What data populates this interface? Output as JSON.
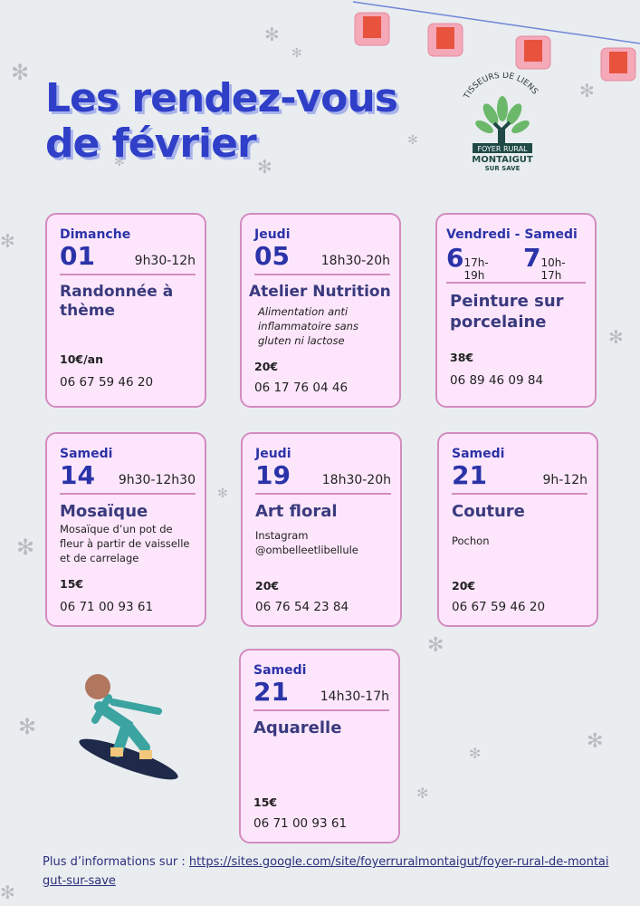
{
  "title": {
    "line1": "Les rendez-vous",
    "line2": "de février"
  },
  "logo": {
    "top_text": "TISSEURS DE LIENS",
    "band": "FOYER RURAL",
    "name": "MONTAIGUT",
    "sub": "SUR SAVE"
  },
  "colors": {
    "title": "#2f3fc8",
    "card_bg": "#fde6fb",
    "card_border": "#d48bc0",
    "accent": "#2b33a8"
  },
  "events": [
    {
      "day": "Dimanche",
      "date": "01",
      "time": "9h30-12h",
      "title": "Randonnée à thème",
      "desc": "",
      "price": "10€/an",
      "phone": "06 67 59 46 20"
    },
    {
      "day": "Jeudi",
      "date": "05",
      "time": "18h30-20h",
      "title": "Atelier Nutrition",
      "desc": "Alimentation anti inflammatoire sans gluten ni lactose",
      "price": "20€",
      "phone": "06 17 76 04 46"
    },
    {
      "day": "Vendredi - Samedi",
      "date": "6",
      "time": "17h-19h",
      "date2": "7",
      "time2": "10h-17h",
      "title": "Peinture sur porcelaine",
      "desc": "",
      "price": "38€",
      "phone": "06 89 46 09 84"
    },
    {
      "day": "Samedi",
      "date": "14",
      "time": "9h30-12h30",
      "title": "Mosaïque",
      "desc": "Mosaïque d’un pot de fleur à partir de vaisselle et de carrelage",
      "price": "15€",
      "phone": "06 71 00 93 61"
    },
    {
      "day": "Jeudi",
      "date": "19",
      "time": "18h30-20h",
      "title": "Art floral",
      "desc": "Instagram @ombelleetlibellule",
      "price": "20€",
      "phone": "06 76 54 23 84"
    },
    {
      "day": "Samedi",
      "date": "21",
      "time": "9h-12h",
      "title": "Couture",
      "desc": "Pochon",
      "price": "20€",
      "phone": "06 67 59 46 20"
    },
    {
      "day": "Samedi",
      "date": "21",
      "time": "14h30-17h",
      "title": "Aquarelle",
      "desc": "",
      "price": "15€",
      "phone": "06 71 00 93 61"
    }
  ],
  "footer": {
    "label": "Plus d’informations sur : ",
    "link": "https://sites.google.com/site/foyerruralmontaigut/foyer-rural-de-montaigut-sur-save"
  }
}
